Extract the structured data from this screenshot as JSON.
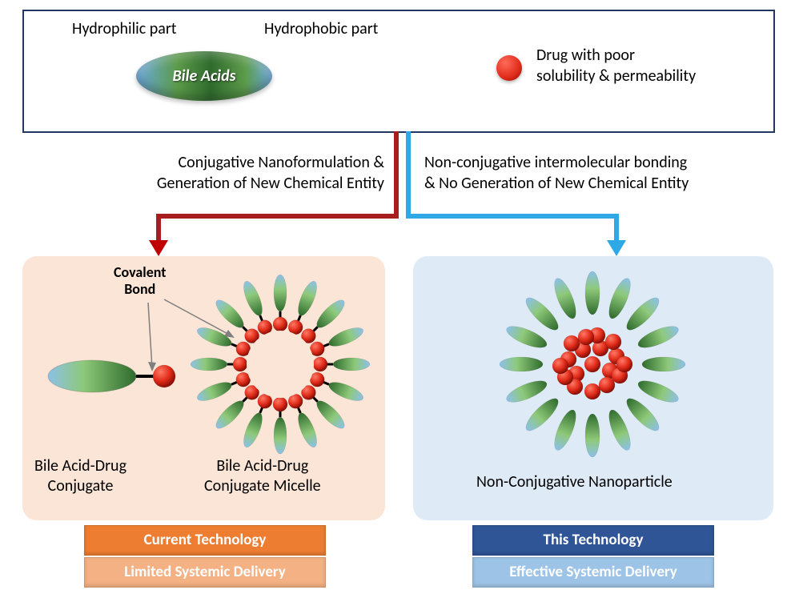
{
  "legend": {
    "hydrophilic": "Hydrophilic part",
    "hydrophobic": "Hydrophobic part",
    "bileAcids": "Bile Acids",
    "drugLabel": "Drug with poor\nsolubility & permeability"
  },
  "arrows": {
    "left": {
      "line1": "Conjugative Nanoformulation &",
      "line2": "Generation of New Chemical Entity",
      "color": "#a81e1e",
      "head": "#c00000"
    },
    "right": {
      "line1": "Non-conjugative intermolecular bonding",
      "line2": "& No Generation of New Chemical Entity",
      "color": "#2ea9e6",
      "head": "#2ea9e6"
    }
  },
  "left": {
    "covalent": "Covalent\nBond",
    "conjugate": "Bile Acid-Drug\nConjugate",
    "micelle": "Bile Acid-Drug\nConjugate Micelle",
    "tag1": {
      "text": "Current Technology",
      "bg": "#ed7d31"
    },
    "tag2": {
      "text": "Limited Systemic Delivery",
      "bg": "#f4b183"
    }
  },
  "right": {
    "label": "Non-Conjugative Nanoparticle",
    "tag1": {
      "text": "This Technology",
      "bg": "#2f5597"
    },
    "tag2": {
      "text": "Effective Systemic Delivery",
      "bg": "#9dc3e6"
    }
  },
  "style": {
    "petalCount": 16,
    "micelleRadiusInner": 56,
    "micellePetalLen": 46,
    "rightPetalLen": 54,
    "rightDrugCount": 18
  }
}
